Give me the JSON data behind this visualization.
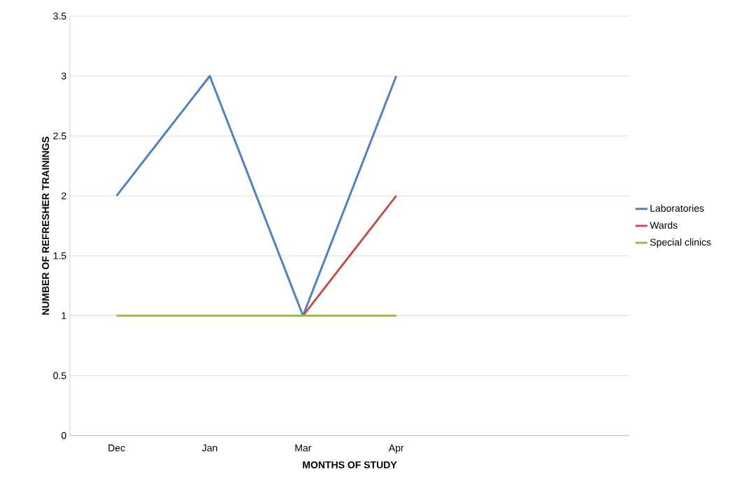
{
  "chart_data": {
    "type": "line",
    "xlabel": "MONTHS OF STUDY",
    "ylabel": "NUMBER OF REFRESHER TRAININGS",
    "categories": [
      "Dec",
      "Jan",
      "Mar",
      "Apr",
      null,
      null
    ],
    "series": [
      {
        "name": "Laboratories",
        "color": "#4f81bd",
        "values": [
          2,
          3,
          1,
          3,
          null,
          null
        ]
      },
      {
        "name": "Wards",
        "color": "#c0504d",
        "values": [
          null,
          null,
          1,
          2,
          null,
          null
        ]
      },
      {
        "name": "Special clinics",
        "color": "#9bbb59",
        "values": [
          1,
          1,
          1,
          1,
          null,
          null
        ]
      }
    ],
    "ylim": [
      0,
      3.5
    ],
    "yticks": [
      0,
      0.5,
      1,
      1.5,
      2,
      2.5,
      3,
      3.5
    ],
    "grid": "y",
    "legend": "right",
    "marker": "none",
    "line_style": "solid"
  }
}
